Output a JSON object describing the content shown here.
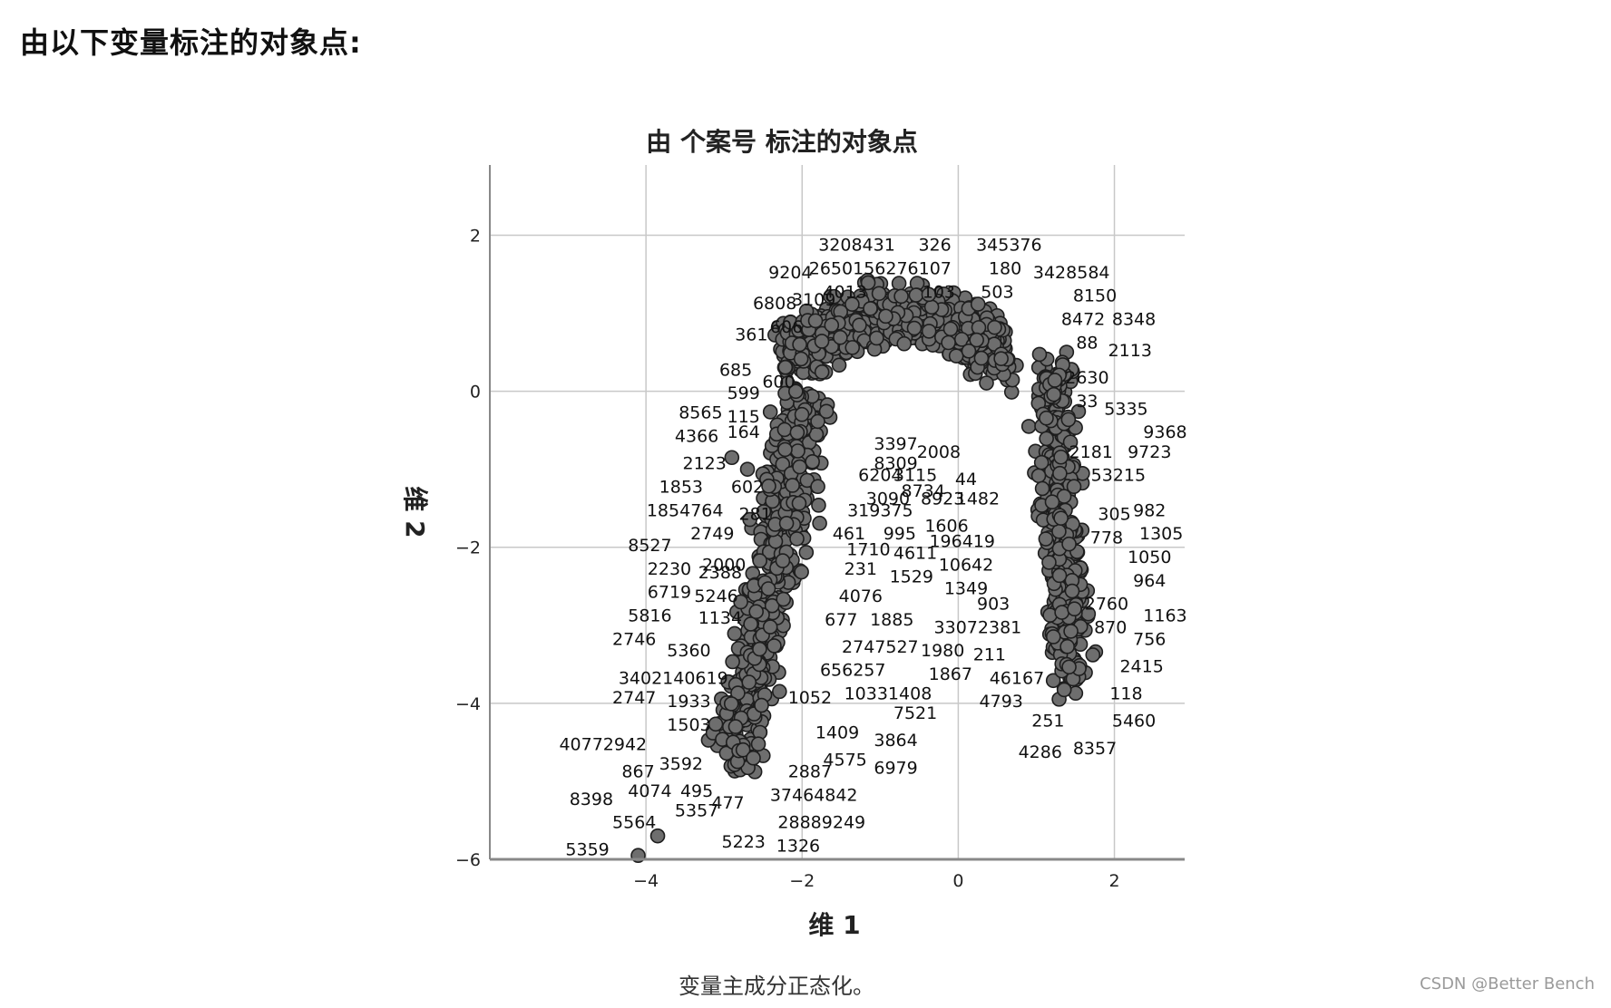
{
  "page": {
    "heading": "由以下变量标注的对象点:",
    "watermark": "CSDN @Better Bench"
  },
  "chart_data": {
    "type": "scatter",
    "title": "由 个案号 标注的对象点",
    "xlabel": "维 1",
    "ylabel": "维 2",
    "footnote": "变量主成分正态化。",
    "xlim": [
      -6.0,
      2.9
    ],
    "ylim": [
      -6.0,
      2.9
    ],
    "xticks": [
      -4,
      -2,
      0,
      2
    ],
    "yticks": [
      -6,
      -4,
      -2,
      0,
      2
    ],
    "grid": true,
    "point_color": "#6e6e6e",
    "point_edge": "#1e1e1e",
    "labeled_points": [
      {
        "label": "3208431",
        "x": -1.3,
        "y": 1.8
      },
      {
        "label": "326",
        "x": -0.3,
        "y": 1.8
      },
      {
        "label": "345376",
        "x": 0.65,
        "y": 1.8
      },
      {
        "label": "9204",
        "x": -2.15,
        "y": 1.45
      },
      {
        "label": "2650156276107",
        "x": -1.0,
        "y": 1.5
      },
      {
        "label": "180",
        "x": 0.6,
        "y": 1.5
      },
      {
        "label": "3428584",
        "x": 1.45,
        "y": 1.45
      },
      {
        "label": "4013",
        "x": -1.45,
        "y": 1.2
      },
      {
        "label": "103",
        "x": -0.25,
        "y": 1.2
      },
      {
        "label": "503",
        "x": 0.5,
        "y": 1.2
      },
      {
        "label": "6808",
        "x": -2.35,
        "y": 1.05
      },
      {
        "label": "3109",
        "x": -1.85,
        "y": 1.1
      },
      {
        "label": "8150",
        "x": 1.75,
        "y": 1.15
      },
      {
        "label": "8472",
        "x": 1.6,
        "y": 0.85
      },
      {
        "label": "8348",
        "x": 2.25,
        "y": 0.85
      },
      {
        "label": "361",
        "x": -2.65,
        "y": 0.65
      },
      {
        "label": "606",
        "x": -2.2,
        "y": 0.75
      },
      {
        "label": "88",
        "x": 1.65,
        "y": 0.55
      },
      {
        "label": "2113",
        "x": 2.2,
        "y": 0.45
      },
      {
        "label": "685",
        "x": -2.85,
        "y": 0.2
      },
      {
        "label": "2630",
        "x": 1.65,
        "y": 0.1
      },
      {
        "label": "599",
        "x": -2.75,
        "y": -0.1
      },
      {
        "label": "600",
        "x": -2.3,
        "y": 0.05
      },
      {
        "label": "8565",
        "x": -3.3,
        "y": -0.35
      },
      {
        "label": "115",
        "x": -2.75,
        "y": -0.4
      },
      {
        "label": "33",
        "x": 1.65,
        "y": -0.2
      },
      {
        "label": "5335",
        "x": 2.15,
        "y": -0.3
      },
      {
        "label": "9368",
        "x": 2.65,
        "y": -0.6
      },
      {
        "label": "4366",
        "x": -3.35,
        "y": -0.65
      },
      {
        "label": "164",
        "x": -2.75,
        "y": -0.6
      },
      {
        "label": "2181",
        "x": 1.7,
        "y": -0.85
      },
      {
        "label": "9723",
        "x": 2.45,
        "y": -0.85
      },
      {
        "label": "2123",
        "x": -3.25,
        "y": -1.0
      },
      {
        "label": "3397",
        "x": -0.8,
        "y": -0.75
      },
      {
        "label": "2008",
        "x": -0.25,
        "y": -0.85
      },
      {
        "label": "8309",
        "x": -0.8,
        "y": -1.0
      },
      {
        "label": "53215",
        "x": 2.05,
        "y": -1.15
      },
      {
        "label": "1853",
        "x": -3.55,
        "y": -1.3
      },
      {
        "label": "602",
        "x": -2.7,
        "y": -1.3
      },
      {
        "label": "6204",
        "x": -1.0,
        "y": -1.15
      },
      {
        "label": "3115",
        "x": -0.55,
        "y": -1.15
      },
      {
        "label": "44",
        "x": 0.1,
        "y": -1.2
      },
      {
        "label": "8734",
        "x": -0.45,
        "y": -1.35
      },
      {
        "label": "1854764",
        "x": -3.5,
        "y": -1.6
      },
      {
        "label": "281",
        "x": -2.6,
        "y": -1.65
      },
      {
        "label": "319375",
        "x": -1.0,
        "y": -1.6
      },
      {
        "label": "3090",
        "x": -0.9,
        "y": -1.45
      },
      {
        "label": "8923",
        "x": -0.2,
        "y": -1.45
      },
      {
        "label": "1482",
        "x": 0.25,
        "y": -1.45
      },
      {
        "label": "305",
        "x": 2.0,
        "y": -1.65
      },
      {
        "label": "982",
        "x": 2.45,
        "y": -1.6
      },
      {
        "label": "2749",
        "x": -3.15,
        "y": -1.9
      },
      {
        "label": "461",
        "x": -1.4,
        "y": -1.9
      },
      {
        "label": "995",
        "x": -0.75,
        "y": -1.9
      },
      {
        "label": "1606",
        "x": -0.15,
        "y": -1.8
      },
      {
        "label": "778",
        "x": 1.9,
        "y": -1.95
      },
      {
        "label": "1305",
        "x": 2.6,
        "y": -1.9
      },
      {
        "label": "8527",
        "x": -3.95,
        "y": -2.05
      },
      {
        "label": "1710",
        "x": -1.15,
        "y": -2.1
      },
      {
        "label": "4611",
        "x": -0.55,
        "y": -2.15
      },
      {
        "label": "196419",
        "x": 0.05,
        "y": -2.0
      },
      {
        "label": "2230",
        "x": -3.7,
        "y": -2.35
      },
      {
        "label": "2000",
        "x": -3.0,
        "y": -2.3
      },
      {
        "label": "2388",
        "x": -3.05,
        "y": -2.4
      },
      {
        "label": "231",
        "x": -1.25,
        "y": -2.35
      },
      {
        "label": "1529",
        "x": -0.6,
        "y": -2.45
      },
      {
        "label": "10642",
        "x": 0.1,
        "y": -2.3
      },
      {
        "label": "1050",
        "x": 2.45,
        "y": -2.2
      },
      {
        "label": "6719",
        "x": -3.7,
        "y": -2.65
      },
      {
        "label": "5246",
        "x": -3.1,
        "y": -2.7
      },
      {
        "label": "4076",
        "x": -1.25,
        "y": -2.7
      },
      {
        "label": "1349",
        "x": 0.1,
        "y": -2.6
      },
      {
        "label": "964",
        "x": 2.45,
        "y": -2.5
      },
      {
        "label": "903",
        "x": 0.45,
        "y": -2.8
      },
      {
        "label": "2760",
        "x": 1.9,
        "y": -2.8
      },
      {
        "label": "5816",
        "x": -3.95,
        "y": -2.95
      },
      {
        "label": "1134",
        "x": -3.05,
        "y": -2.98
      },
      {
        "label": "677",
        "x": -1.5,
        "y": -3.0
      },
      {
        "label": "1885",
        "x": -0.85,
        "y": -3.0
      },
      {
        "label": "33072381",
        "x": 0.25,
        "y": -3.1
      },
      {
        "label": "870",
        "x": 1.95,
        "y": -3.1
      },
      {
        "label": "1163",
        "x": 2.65,
        "y": -2.95
      },
      {
        "label": "2746",
        "x": -4.15,
        "y": -3.25
      },
      {
        "label": "5360",
        "x": -3.45,
        "y": -3.4
      },
      {
        "label": "2747527",
        "x": -1.0,
        "y": -3.35
      },
      {
        "label": "1980",
        "x": -0.2,
        "y": -3.4
      },
      {
        "label": "211",
        "x": 0.4,
        "y": -3.45
      },
      {
        "label": "756",
        "x": 2.45,
        "y": -3.25
      },
      {
        "label": "656257",
        "x": -1.35,
        "y": -3.65
      },
      {
        "label": "1867",
        "x": -0.1,
        "y": -3.7
      },
      {
        "label": "46167",
        "x": 0.75,
        "y": -3.75
      },
      {
        "label": "2415",
        "x": 2.35,
        "y": -3.6
      },
      {
        "label": "3402140619",
        "x": -3.65,
        "y": -3.75
      },
      {
        "label": "10331408",
        "x": -0.9,
        "y": -3.95
      },
      {
        "label": "118",
        "x": 2.15,
        "y": -3.95
      },
      {
        "label": "2747",
        "x": -4.15,
        "y": -4.0
      },
      {
        "label": "1933",
        "x": -3.45,
        "y": -4.05
      },
      {
        "label": "1052",
        "x": -1.9,
        "y": -4.0
      },
      {
        "label": "7521",
        "x": -0.55,
        "y": -4.2
      },
      {
        "label": "4793",
        "x": 0.55,
        "y": -4.05
      },
      {
        "label": "1503",
        "x": -3.45,
        "y": -4.35
      },
      {
        "label": "251",
        "x": 1.15,
        "y": -4.3
      },
      {
        "label": "5460",
        "x": 2.25,
        "y": -4.3
      },
      {
        "label": "40772942",
        "x": -4.55,
        "y": -4.6
      },
      {
        "label": "1409",
        "x": -1.55,
        "y": -4.45
      },
      {
        "label": "3864",
        "x": -0.8,
        "y": -4.55
      },
      {
        "label": "3592",
        "x": -3.55,
        "y": -4.85
      },
      {
        "label": "4575",
        "x": -1.45,
        "y": -4.8
      },
      {
        "label": "6979",
        "x": -0.8,
        "y": -4.9
      },
      {
        "label": "4286",
        "x": 1.05,
        "y": -4.7
      },
      {
        "label": "8357",
        "x": 1.75,
        "y": -4.65
      },
      {
        "label": "867",
        "x": -4.1,
        "y": -4.95
      },
      {
        "label": "2887",
        "x": -1.9,
        "y": -4.95
      },
      {
        "label": "4074",
        "x": -3.95,
        "y": -5.2
      },
      {
        "label": "495",
        "x": -3.35,
        "y": -5.2
      },
      {
        "label": "37464842",
        "x": -1.85,
        "y": -5.25
      },
      {
        "label": "8398",
        "x": -4.7,
        "y": -5.3
      },
      {
        "label": "477",
        "x": -2.95,
        "y": -5.35
      },
      {
        "label": "5357",
        "x": -3.35,
        "y": -5.45
      },
      {
        "label": "28889249",
        "x": -1.75,
        "y": -5.6
      },
      {
        "label": "5564",
        "x": -4.15,
        "y": -5.6
      },
      {
        "label": "5223",
        "x": -2.75,
        "y": -5.85
      },
      {
        "label": "1326",
        "x": -2.05,
        "y": -5.9
      },
      {
        "label": "5359",
        "x": -4.75,
        "y": -5.95
      }
    ]
  }
}
